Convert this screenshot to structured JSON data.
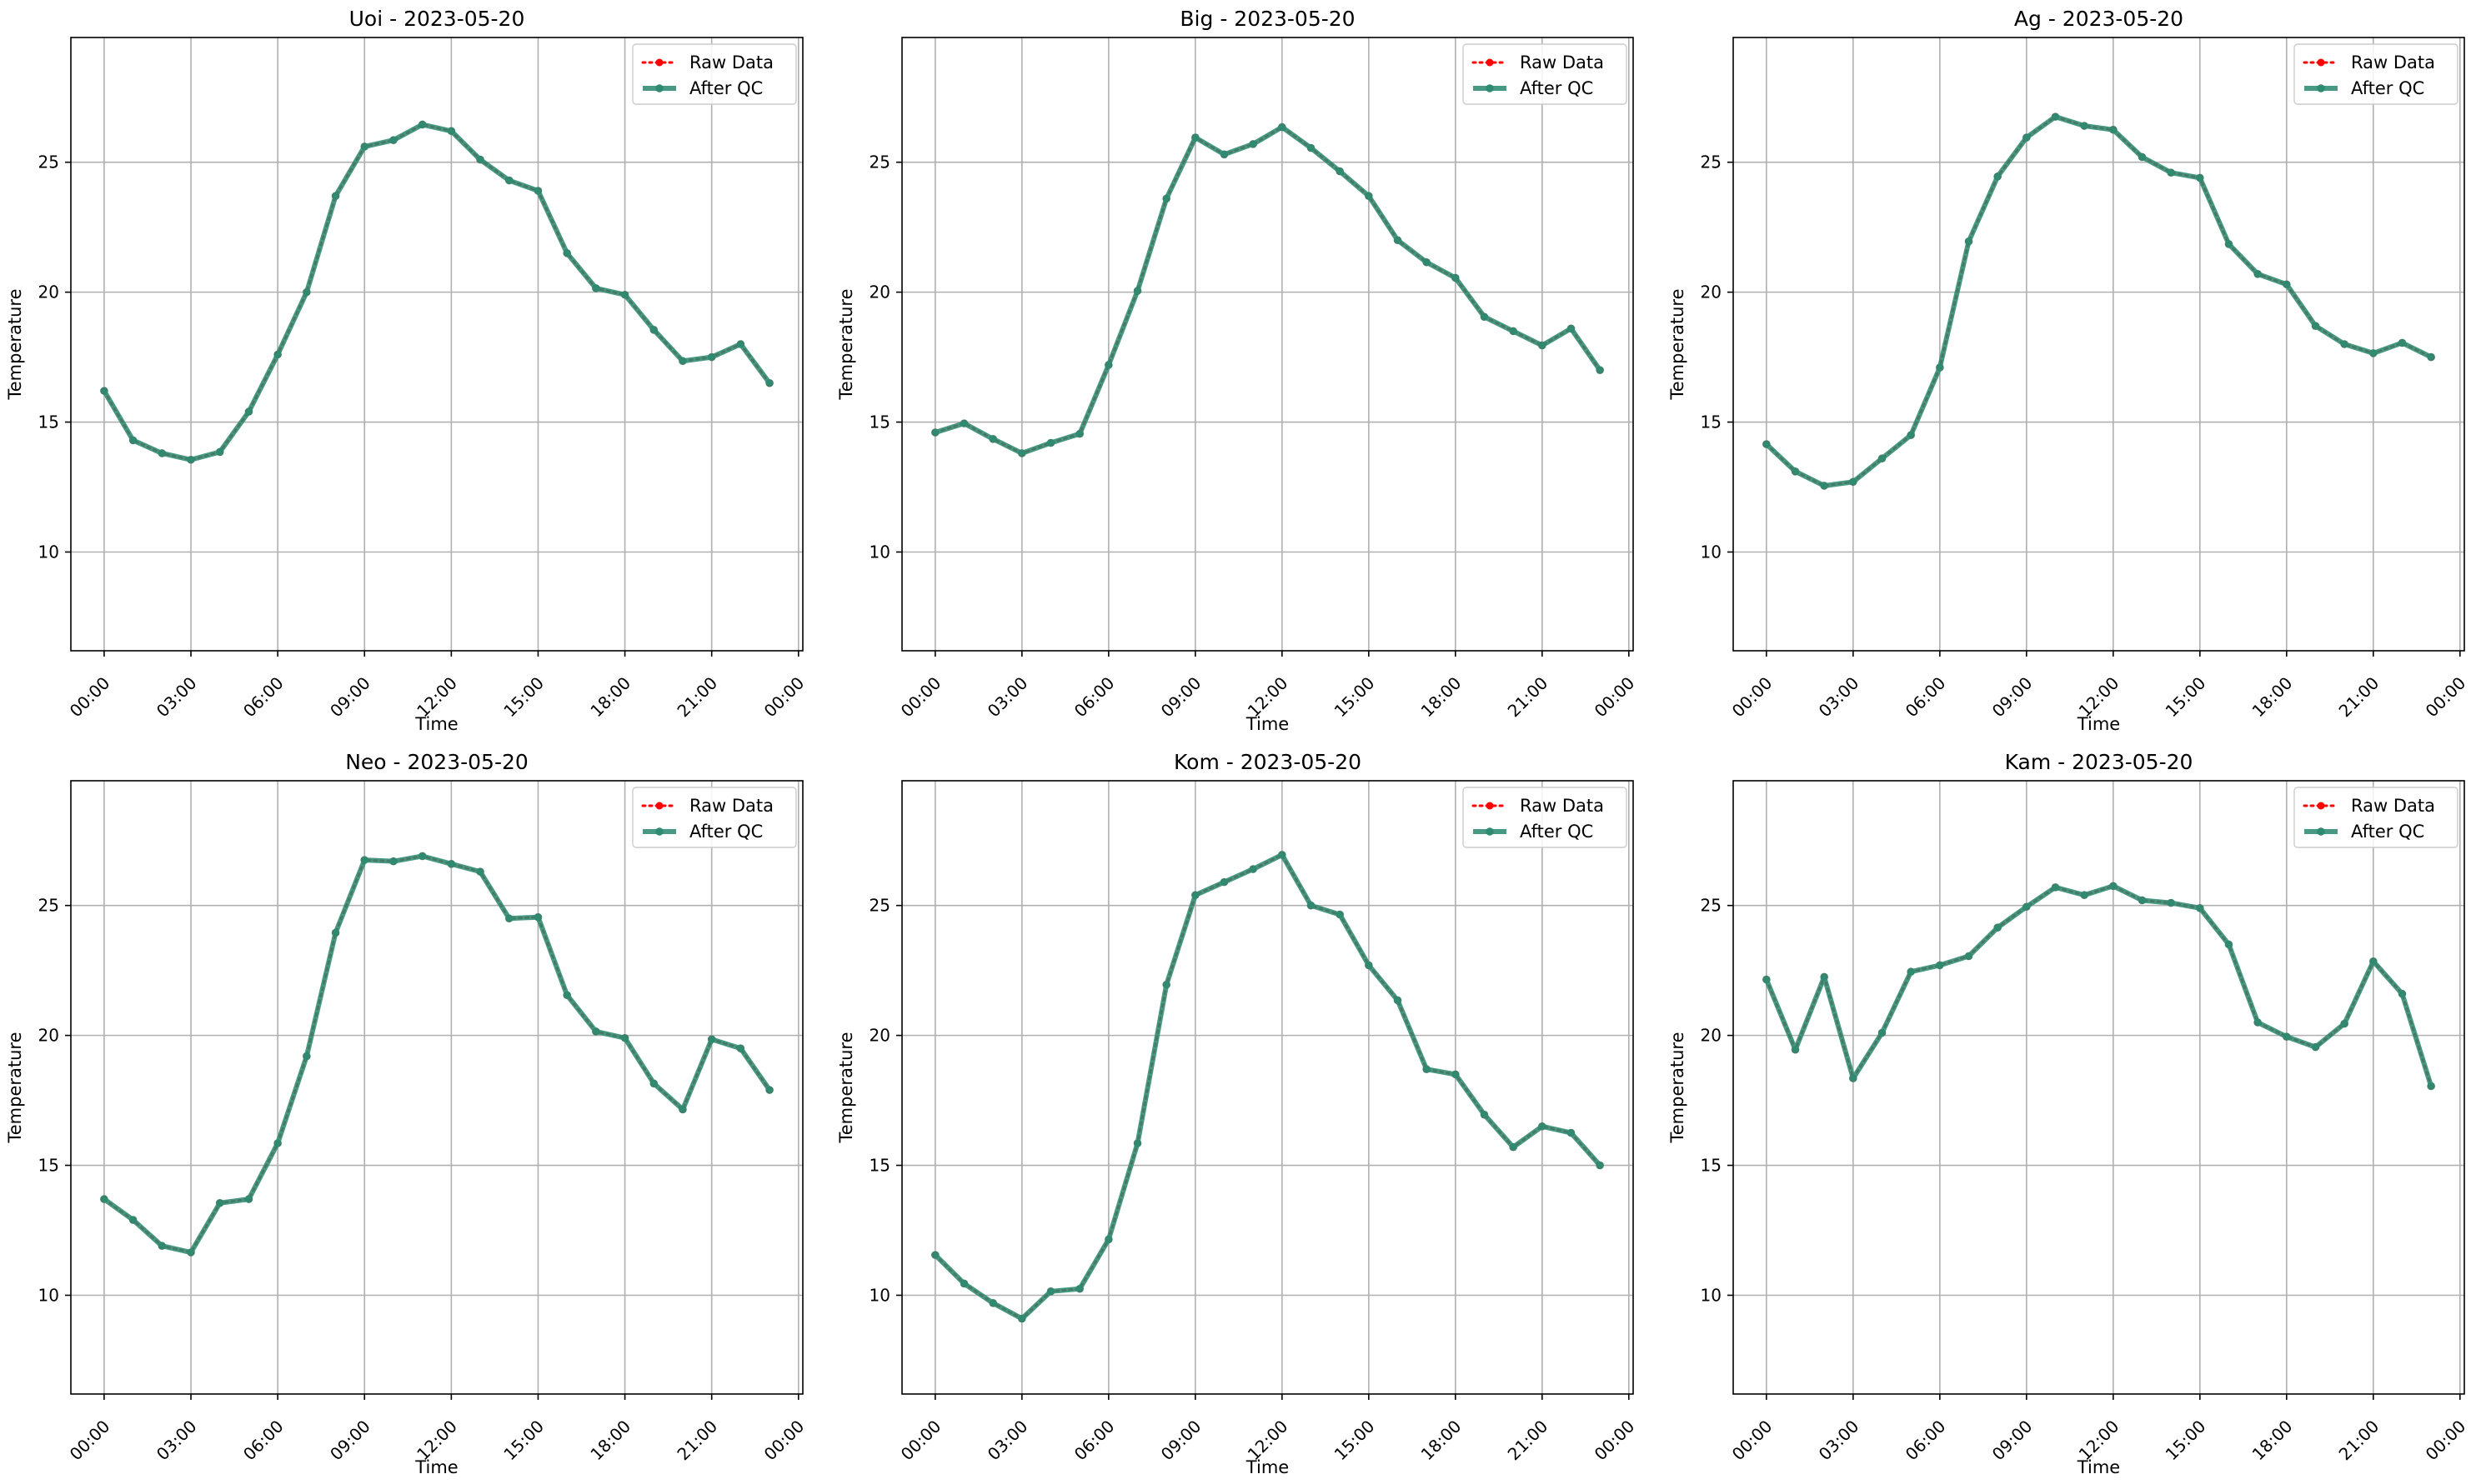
{
  "legend": {
    "raw_label": "Raw Data",
    "qc_label": "After QC"
  },
  "colors": {
    "raw": "#ff0000",
    "after_qc": "#2e8b72",
    "grid": "#b0b0b0",
    "axis": "#000000"
  },
  "chart_data": [
    {
      "type": "line",
      "title": "Uoi - 2023-05-20",
      "xlabel": "Time",
      "ylabel": "Temperature",
      "x_ticks": [
        "00:00",
        "03:00",
        "06:00",
        "09:00",
        "12:00",
        "15:00",
        "18:00",
        "21:00",
        "00:00"
      ],
      "y_ticks": [
        10,
        15,
        20,
        25
      ],
      "xlim_hours": [
        -1.15,
        24.15
      ],
      "ylim": [
        6.2,
        29.8
      ],
      "grid": true,
      "legend_position": "top-right",
      "x_hours": [
        0,
        1,
        2,
        3,
        4,
        5,
        6,
        7,
        8,
        9,
        10,
        11,
        12,
        13,
        14,
        15,
        16,
        17,
        18,
        19,
        20,
        21,
        22,
        23
      ],
      "series": [
        {
          "name": "Raw Data",
          "values": [
            16.2,
            14.3,
            13.8,
            13.55,
            13.85,
            15.4,
            17.6,
            20.0,
            23.7,
            25.6,
            25.85,
            26.45,
            26.2,
            25.1,
            24.3,
            23.9,
            21.5,
            20.15,
            19.9,
            18.55,
            17.35,
            17.5,
            18.0,
            16.5
          ]
        },
        {
          "name": "After QC",
          "values": [
            16.2,
            14.3,
            13.8,
            13.55,
            13.85,
            15.4,
            17.6,
            20.0,
            23.7,
            25.6,
            25.85,
            26.45,
            26.2,
            25.1,
            24.3,
            23.9,
            21.5,
            20.15,
            19.9,
            18.55,
            17.35,
            17.5,
            18.0,
            16.5
          ]
        }
      ]
    },
    {
      "type": "line",
      "title": "Big - 2023-05-20",
      "xlabel": "Time",
      "ylabel": "Temperature",
      "x_ticks": [
        "00:00",
        "03:00",
        "06:00",
        "09:00",
        "12:00",
        "15:00",
        "18:00",
        "21:00",
        "00:00"
      ],
      "y_ticks": [
        10,
        15,
        20,
        25
      ],
      "xlim_hours": [
        -1.15,
        24.15
      ],
      "ylim": [
        6.2,
        29.8
      ],
      "grid": true,
      "legend_position": "top-right",
      "x_hours": [
        0,
        1,
        2,
        3,
        4,
        5,
        6,
        7,
        8,
        9,
        10,
        11,
        12,
        13,
        14,
        15,
        16,
        17,
        18,
        19,
        20,
        21,
        22,
        23
      ],
      "series": [
        {
          "name": "Raw Data",
          "values": [
            14.6,
            14.95,
            14.35,
            13.8,
            14.2,
            14.55,
            17.2,
            20.05,
            23.6,
            25.95,
            25.3,
            25.7,
            26.35,
            25.55,
            24.65,
            23.7,
            22.0,
            21.15,
            20.55,
            19.05,
            18.5,
            17.95,
            18.6,
            17.0
          ]
        },
        {
          "name": "After QC",
          "values": [
            14.6,
            14.95,
            14.35,
            13.8,
            14.2,
            14.55,
            17.2,
            20.05,
            23.6,
            25.95,
            25.3,
            25.7,
            26.35,
            25.55,
            24.65,
            23.7,
            22.0,
            21.15,
            20.55,
            19.05,
            18.5,
            17.95,
            18.6,
            17.0
          ]
        }
      ]
    },
    {
      "type": "line",
      "title": "Ag - 2023-05-20",
      "xlabel": "Time",
      "ylabel": "Temperature",
      "x_ticks": [
        "00:00",
        "03:00",
        "06:00",
        "09:00",
        "12:00",
        "15:00",
        "18:00",
        "21:00",
        "00:00"
      ],
      "y_ticks": [
        10,
        15,
        20,
        25
      ],
      "xlim_hours": [
        -1.15,
        24.15
      ],
      "ylim": [
        6.2,
        29.8
      ],
      "grid": true,
      "legend_position": "top-right",
      "x_hours": [
        0,
        1,
        2,
        3,
        4,
        5,
        6,
        7,
        8,
        9,
        10,
        11,
        12,
        13,
        14,
        15,
        16,
        17,
        18,
        19,
        20,
        21,
        22,
        23
      ],
      "series": [
        {
          "name": "Raw Data",
          "values": [
            14.15,
            13.1,
            12.55,
            12.7,
            13.6,
            14.5,
            17.1,
            21.95,
            24.45,
            25.95,
            26.75,
            26.4,
            26.25,
            25.2,
            24.6,
            24.4,
            21.85,
            20.7,
            20.3,
            18.7,
            18.0,
            17.65,
            18.05,
            17.5
          ]
        },
        {
          "name": "After QC",
          "values": [
            14.15,
            13.1,
            12.55,
            12.7,
            13.6,
            14.5,
            17.1,
            21.95,
            24.45,
            25.95,
            26.75,
            26.4,
            26.25,
            25.2,
            24.6,
            24.4,
            21.85,
            20.7,
            20.3,
            18.7,
            18.0,
            17.65,
            18.05,
            17.5
          ]
        }
      ]
    },
    {
      "type": "line",
      "title": "Neo - 2023-05-20",
      "xlabel": "Time",
      "ylabel": "Temperature",
      "x_ticks": [
        "00:00",
        "03:00",
        "06:00",
        "09:00",
        "12:00",
        "15:00",
        "18:00",
        "21:00",
        "00:00"
      ],
      "y_ticks": [
        10,
        15,
        20,
        25
      ],
      "xlim_hours": [
        -1.15,
        24.15
      ],
      "ylim": [
        6.2,
        29.8
      ],
      "grid": true,
      "legend_position": "top-right",
      "x_hours": [
        0,
        1,
        2,
        3,
        4,
        5,
        6,
        7,
        8,
        9,
        10,
        11,
        12,
        13,
        14,
        15,
        16,
        17,
        18,
        19,
        20,
        21,
        22,
        23
      ],
      "series": [
        {
          "name": "Raw Data",
          "values": [
            13.7,
            12.9,
            11.9,
            11.65,
            13.55,
            13.7,
            15.85,
            19.2,
            23.95,
            26.75,
            26.7,
            26.9,
            26.6,
            26.3,
            24.5,
            24.55,
            21.55,
            20.15,
            19.9,
            18.15,
            17.15,
            19.85,
            19.5,
            17.9
          ]
        },
        {
          "name": "After QC",
          "values": [
            13.7,
            12.9,
            11.9,
            11.65,
            13.55,
            13.7,
            15.85,
            19.2,
            23.95,
            26.75,
            26.7,
            26.9,
            26.6,
            26.3,
            24.5,
            24.55,
            21.55,
            20.15,
            19.9,
            18.15,
            17.15,
            19.85,
            19.5,
            17.9
          ]
        }
      ]
    },
    {
      "type": "line",
      "title": "Kom - 2023-05-20",
      "xlabel": "Time",
      "ylabel": "Temperature",
      "x_ticks": [
        "00:00",
        "03:00",
        "06:00",
        "09:00",
        "12:00",
        "15:00",
        "18:00",
        "21:00",
        "00:00"
      ],
      "y_ticks": [
        10,
        15,
        20,
        25
      ],
      "xlim_hours": [
        -1.15,
        24.15
      ],
      "ylim": [
        6.2,
        29.8
      ],
      "grid": true,
      "legend_position": "top-right",
      "x_hours": [
        0,
        1,
        2,
        3,
        4,
        5,
        6,
        7,
        8,
        9,
        10,
        11,
        12,
        13,
        14,
        15,
        16,
        17,
        18,
        19,
        20,
        21,
        22,
        23
      ],
      "series": [
        {
          "name": "Raw Data",
          "values": [
            11.55,
            10.45,
            9.7,
            9.1,
            10.15,
            10.25,
            12.15,
            15.85,
            21.95,
            25.4,
            25.9,
            26.4,
            26.95,
            25.0,
            24.65,
            22.7,
            21.35,
            18.7,
            18.5,
            16.95,
            15.7,
            16.5,
            16.25,
            15.0
          ]
        },
        {
          "name": "After QC",
          "values": [
            11.55,
            10.45,
            9.7,
            9.1,
            10.15,
            10.25,
            12.15,
            15.85,
            21.95,
            25.4,
            25.9,
            26.4,
            26.95,
            25.0,
            24.65,
            22.7,
            21.35,
            18.7,
            18.5,
            16.95,
            15.7,
            16.5,
            16.25,
            15.0
          ]
        }
      ]
    },
    {
      "type": "line",
      "title": "Kam - 2023-05-20",
      "xlabel": "Time",
      "ylabel": "Temperature",
      "x_ticks": [
        "00:00",
        "03:00",
        "06:00",
        "09:00",
        "12:00",
        "15:00",
        "18:00",
        "21:00",
        "00:00"
      ],
      "y_ticks": [
        10,
        15,
        20,
        25
      ],
      "xlim_hours": [
        -1.15,
        24.15
      ],
      "ylim": [
        6.2,
        29.8
      ],
      "grid": true,
      "legend_position": "top-right",
      "x_hours": [
        0,
        1,
        2,
        3,
        4,
        5,
        6,
        7,
        8,
        9,
        10,
        11,
        12,
        13,
        14,
        15,
        16,
        17,
        18,
        19,
        20,
        21,
        22,
        23
      ],
      "series": [
        {
          "name": "Raw Data",
          "values": [
            22.15,
            19.45,
            22.25,
            18.35,
            20.1,
            22.45,
            22.7,
            23.05,
            24.15,
            24.95,
            25.7,
            25.4,
            25.75,
            25.2,
            25.1,
            24.9,
            23.5,
            20.5,
            19.95,
            19.55,
            20.45,
            22.85,
            21.6,
            18.05
          ]
        },
        {
          "name": "After QC",
          "values": [
            22.15,
            19.45,
            22.25,
            18.35,
            20.1,
            22.45,
            22.7,
            23.05,
            24.15,
            24.95,
            25.7,
            25.4,
            25.75,
            25.2,
            25.1,
            24.9,
            23.5,
            20.5,
            19.95,
            19.55,
            20.45,
            22.85,
            21.6,
            18.05
          ]
        }
      ]
    }
  ]
}
